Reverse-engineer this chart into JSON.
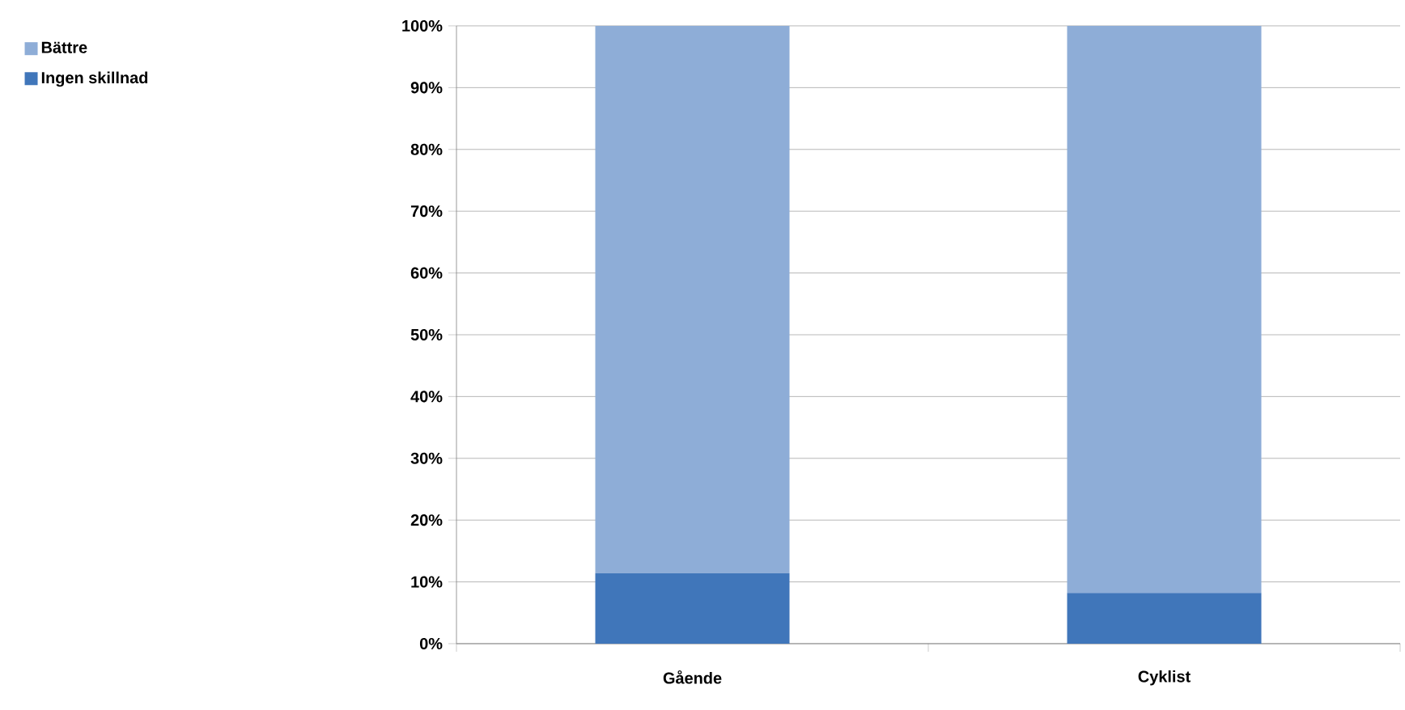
{
  "chart_data": {
    "type": "bar",
    "stacked": true,
    "categories": [
      "Gående",
      "Cyklist"
    ],
    "series": [
      {
        "name": "Ingen skillnad",
        "color": "#4076ba",
        "values": [
          11.4,
          8.2
        ]
      },
      {
        "name": "Bättre",
        "color": "#8eadd7",
        "values": [
          88.6,
          91.8
        ]
      }
    ],
    "ylim": [
      0,
      100
    ],
    "yticks": [
      {
        "value": 0,
        "label": "0%"
      },
      {
        "value": 10,
        "label": "10%"
      },
      {
        "value": 20,
        "label": "20%"
      },
      {
        "value": 30,
        "label": "30%"
      },
      {
        "value": 40,
        "label": "40%"
      },
      {
        "value": 50,
        "label": "50%"
      },
      {
        "value": 60,
        "label": "60%"
      },
      {
        "value": 70,
        "label": "70%"
      },
      {
        "value": 80,
        "label": "80%"
      },
      {
        "value": 90,
        "label": "90%"
      },
      {
        "value": 100,
        "label": "100%"
      }
    ],
    "grid": "y",
    "legend": "left"
  }
}
